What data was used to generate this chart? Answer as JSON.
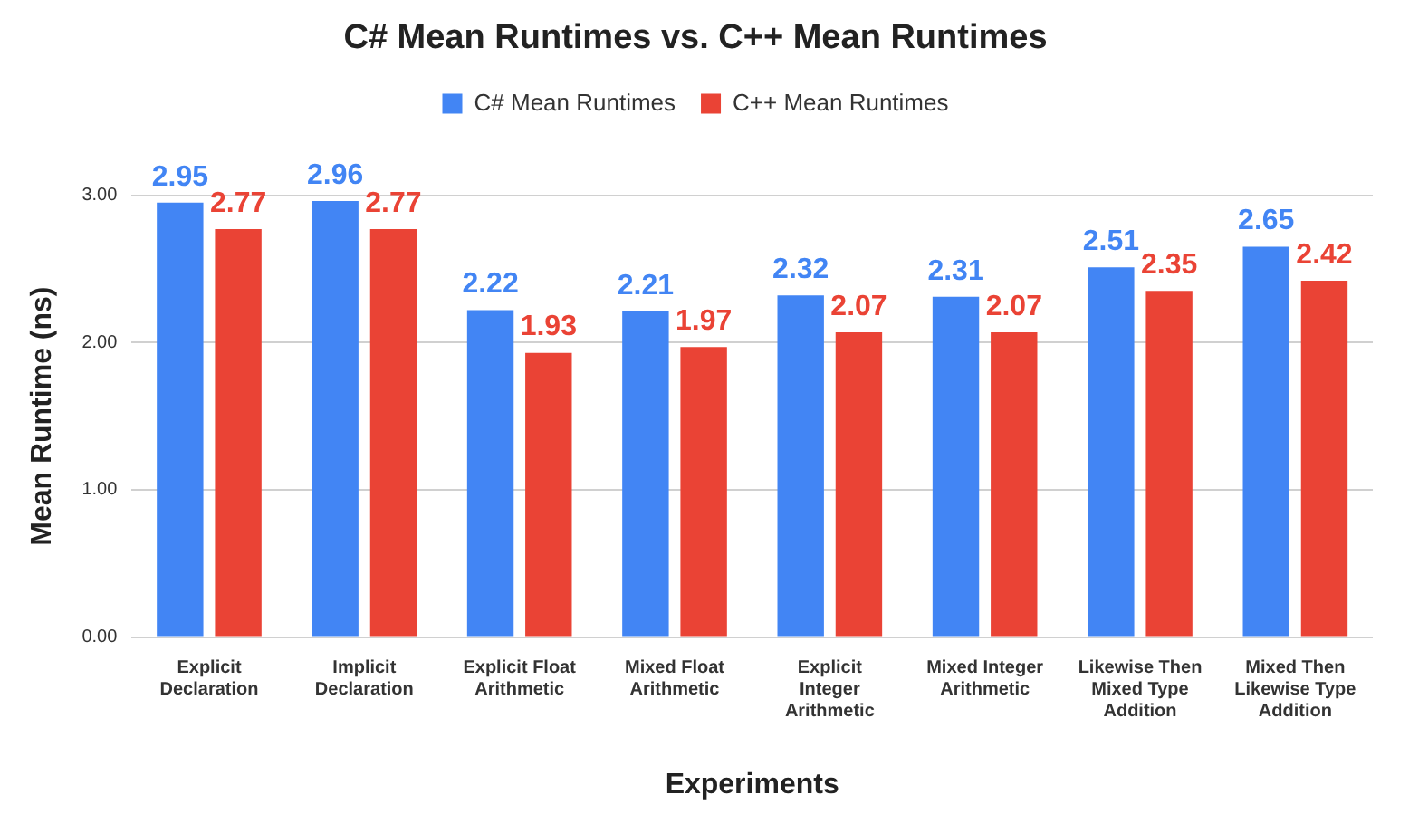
{
  "chart_data": {
    "type": "bar",
    "title": "C# Mean Runtimes vs. C++ Mean Runtimes",
    "xlabel": "Experiments",
    "ylabel": "Mean Runtime (ns)",
    "categories": [
      "Explicit Declaration",
      "Implicit Declaration",
      "Explicit Float Arithmetic",
      "Mixed Float Arithmetic",
      "Explicit Integer Arithmetic",
      "Mixed Integer Arithmetic",
      "Likewise Then Mixed Type Addition",
      "Mixed Then Likewise Type Addition"
    ],
    "series": [
      {
        "name": "C# Mean Runtimes",
        "color": "#4285f4",
        "values": [
          2.95,
          2.96,
          2.22,
          2.21,
          2.32,
          2.31,
          2.51,
          2.65
        ]
      },
      {
        "name": "C++ Mean Runtimes",
        "color": "#ea4335",
        "values": [
          2.77,
          2.77,
          1.93,
          1.97,
          2.07,
          2.07,
          2.35,
          2.42
        ]
      }
    ],
    "ylim": [
      0,
      3
    ],
    "yticks": [
      {
        "value": 0,
        "label": "0.00"
      },
      {
        "value": 1,
        "label": "1.00"
      },
      {
        "value": 2,
        "label": "2.00"
      },
      {
        "value": 3,
        "label": "3.00"
      }
    ],
    "grid": "y",
    "legend": "top",
    "data_labels": true
  }
}
